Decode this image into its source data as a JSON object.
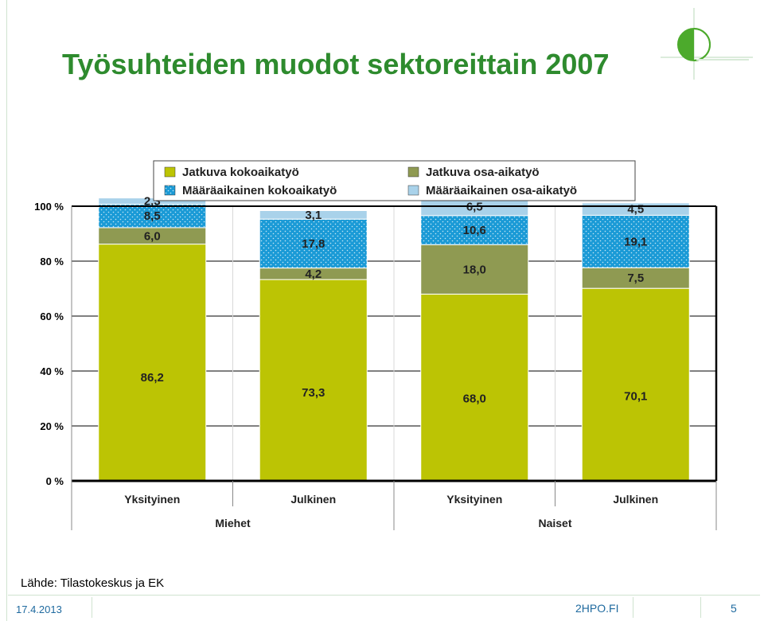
{
  "slide": {
    "title": "Työsuhteiden muodot sektoreittain 2007",
    "source": "Lähde: Tilastokeskus ja EK",
    "footer_date": "17.4.2013",
    "footer_site": "2HPO.FI",
    "page_number": "5"
  },
  "colors": {
    "title": "#2e8b2e",
    "jatkuva_koko": "#bcc404",
    "jatkuva_osa": "#8f9a52",
    "maaraaik_koko": "#1a9ad6",
    "maaraaik_osa": "#a9d2ea",
    "footer_text": "#1f6a9f"
  },
  "chart_data": {
    "type": "bar",
    "stacked": true,
    "ylim": [
      0,
      100
    ],
    "yticks": [
      "0 %",
      "20 %",
      "40 %",
      "60 %",
      "80 %",
      "100 %"
    ],
    "categories": [
      "Yksityinen",
      "Julkinen",
      "Yksityinen",
      "Julkinen"
    ],
    "groups": [
      {
        "label": "Miehet",
        "span": [
          0,
          1
        ]
      },
      {
        "label": "Naiset",
        "span": [
          2,
          3
        ]
      }
    ],
    "legend_position": "top",
    "grid": true,
    "series": [
      {
        "name": "Jatkuva kokoaikatyö",
        "color": "#bcc404",
        "values": [
          86.2,
          73.3,
          68.0,
          70.1
        ],
        "labels": [
          "86,2",
          "73,3",
          "68,0",
          "70,1"
        ]
      },
      {
        "name": "Jatkuva osa-aikatyö",
        "color": "#8f9a52",
        "values": [
          6.0,
          4.2,
          18.0,
          7.5
        ],
        "labels": [
          "6,0",
          "4,2",
          "18,0",
          "7,5"
        ]
      },
      {
        "name": "Määräaikainen kokoaikatyö",
        "color": "#1a9ad6",
        "values": [
          8.5,
          17.8,
          10.6,
          19.1
        ],
        "labels": [
          "8,5",
          "17,8",
          "10,6",
          "19,1"
        ]
      },
      {
        "name": "Määräaikainen osa-aikatyö",
        "color": "#a9d2ea",
        "values": [
          2.3,
          3.1,
          6.5,
          4.5
        ],
        "labels": [
          "2,3",
          "3,1",
          "6,5",
          "4,5"
        ]
      }
    ]
  }
}
